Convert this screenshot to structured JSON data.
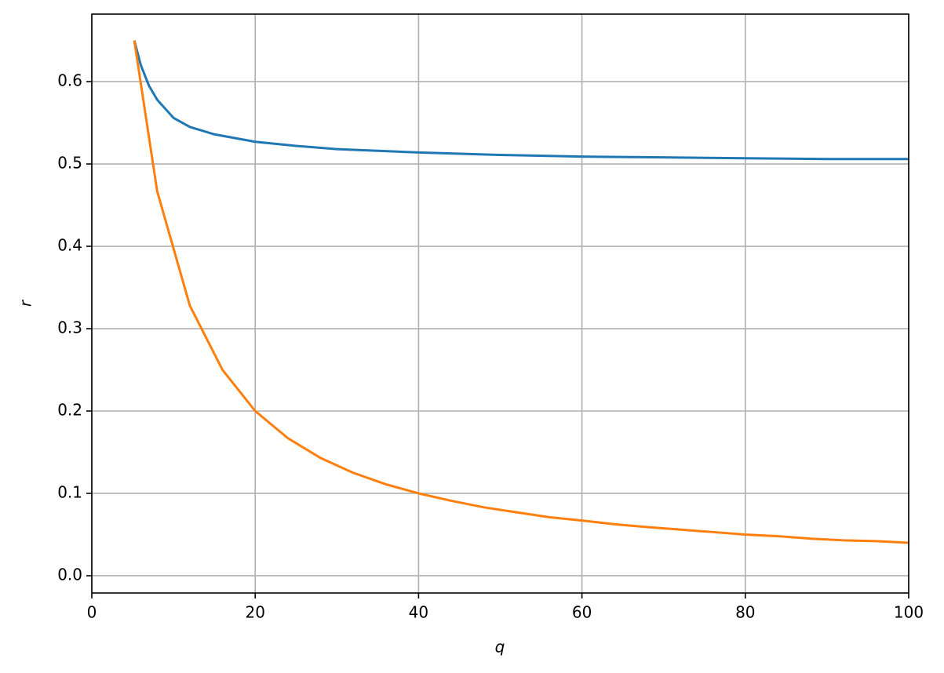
{
  "chart_data": {
    "type": "line",
    "xlabel": "q",
    "ylabel": "r",
    "xlim": [
      0,
      100
    ],
    "ylim": [
      -0.021,
      0.682
    ],
    "xticks": [
      0,
      20,
      40,
      60,
      80,
      100
    ],
    "yticks": [
      {
        "value": 0,
        "label": "0.0"
      },
      0.1,
      0.2,
      0.3,
      0.4,
      0.5,
      0.6
    ],
    "grid": true,
    "series": [
      {
        "color": "#1f77b4",
        "x": [
          5.2,
          6,
          7,
          8,
          10,
          12,
          15,
          20,
          25,
          30,
          40,
          50,
          60,
          70,
          80,
          90,
          100
        ],
        "values": [
          0.65,
          0.62,
          0.595,
          0.578,
          0.556,
          0.545,
          0.536,
          0.527,
          0.522,
          0.518,
          0.514,
          0.511,
          0.509,
          0.508,
          0.507,
          0.506,
          0.506
        ]
      },
      {
        "color": "#ff7f0e",
        "x": [
          5.2,
          8,
          12,
          16,
          20,
          24,
          28,
          32,
          36,
          40,
          44,
          48,
          52,
          56,
          60,
          64,
          68,
          72,
          76,
          80,
          84,
          88,
          92,
          96,
          100
        ],
        "values": [
          0.65,
          0.467,
          0.328,
          0.25,
          0.2,
          0.167,
          0.143,
          0.125,
          0.111,
          0.1,
          0.091,
          0.083,
          0.077,
          0.071,
          0.067,
          0.0625,
          0.059,
          0.056,
          0.053,
          0.05,
          0.048,
          0.045,
          0.043,
          0.042,
          0.04
        ]
      }
    ]
  }
}
